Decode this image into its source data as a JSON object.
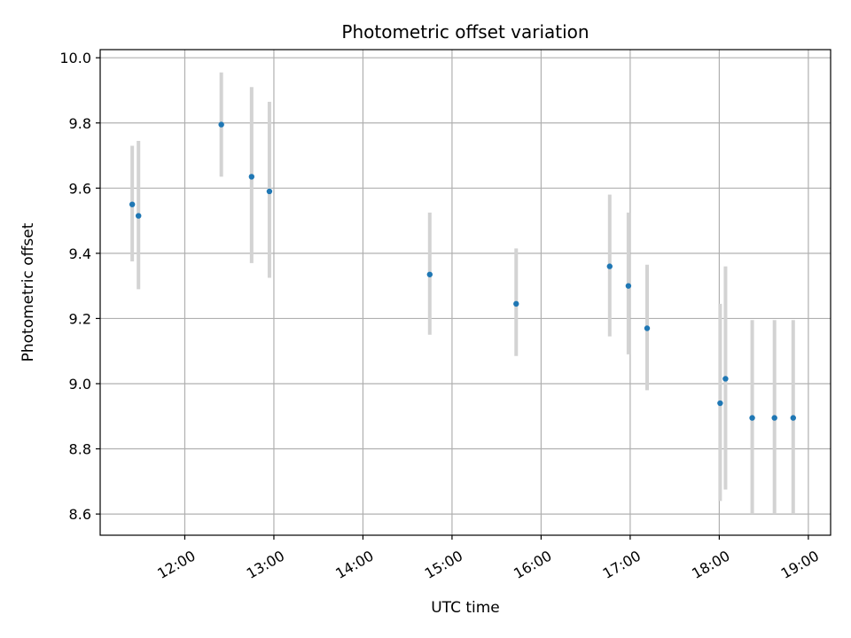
{
  "chart_data": {
    "type": "scatter",
    "title": "Photometric offset variation",
    "xlabel": "UTC time",
    "ylabel": "Photometric offset",
    "x_unit": "hours",
    "xlim": [
      11.05,
      19.25
    ],
    "ylim": [
      8.535,
      10.025
    ],
    "x_ticks": [
      {
        "value": 12,
        "label": "12:00"
      },
      {
        "value": 13,
        "label": "13:00"
      },
      {
        "value": 14,
        "label": "14:00"
      },
      {
        "value": 15,
        "label": "15:00"
      },
      {
        "value": 16,
        "label": "16:00"
      },
      {
        "value": 17,
        "label": "17:00"
      },
      {
        "value": 18,
        "label": "18:00"
      },
      {
        "value": 19,
        "label": "19:00"
      }
    ],
    "y_ticks": [
      {
        "value": 8.6,
        "label": "8.6"
      },
      {
        "value": 8.8,
        "label": "8.8"
      },
      {
        "value": 9.0,
        "label": "9.0"
      },
      {
        "value": 9.2,
        "label": "9.2"
      },
      {
        "value": 9.4,
        "label": "9.4"
      },
      {
        "value": 9.6,
        "label": "9.6"
      },
      {
        "value": 9.8,
        "label": "9.8"
      },
      {
        "value": 10.0,
        "label": "10.0"
      }
    ],
    "grid": true,
    "legend": "none",
    "colors": {
      "marker": "#1f77b4",
      "errorbar": "#d3d3d3",
      "grid": "#b0b0b0"
    },
    "points": [
      {
        "x": 11.41,
        "y": 9.55,
        "err_low": 9.375,
        "err_high": 9.73
      },
      {
        "x": 11.48,
        "y": 9.515,
        "err_low": 9.29,
        "err_high": 9.745
      },
      {
        "x": 12.41,
        "y": 9.795,
        "err_low": 9.635,
        "err_high": 9.955
      },
      {
        "x": 12.75,
        "y": 9.635,
        "err_low": 9.37,
        "err_high": 9.91
      },
      {
        "x": 12.95,
        "y": 9.59,
        "err_low": 9.325,
        "err_high": 9.865
      },
      {
        "x": 14.75,
        "y": 9.335,
        "err_low": 9.15,
        "err_high": 9.525
      },
      {
        "x": 15.72,
        "y": 9.245,
        "err_low": 9.085,
        "err_high": 9.415
      },
      {
        "x": 16.77,
        "y": 9.36,
        "err_low": 9.145,
        "err_high": 9.58
      },
      {
        "x": 16.98,
        "y": 9.3,
        "err_low": 9.09,
        "err_high": 9.525
      },
      {
        "x": 17.19,
        "y": 9.17,
        "err_low": 8.98,
        "err_high": 9.365
      },
      {
        "x": 18.01,
        "y": 8.94,
        "err_low": 8.64,
        "err_high": 9.245
      },
      {
        "x": 18.07,
        "y": 9.015,
        "err_low": 8.675,
        "err_high": 9.36
      },
      {
        "x": 18.37,
        "y": 8.895,
        "err_low": 8.6,
        "err_high": 9.195
      },
      {
        "x": 18.62,
        "y": 8.895,
        "err_low": 8.6,
        "err_high": 9.195
      },
      {
        "x": 18.83,
        "y": 8.895,
        "err_low": 8.6,
        "err_high": 9.195
      }
    ]
  }
}
